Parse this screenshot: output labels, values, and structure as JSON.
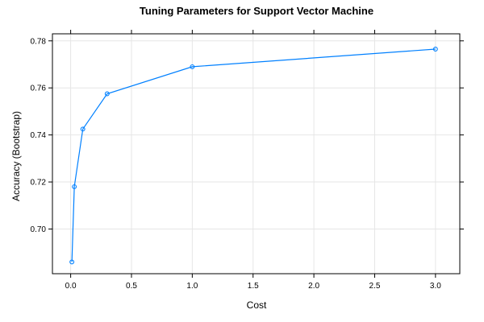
{
  "chart_data": {
    "type": "line",
    "title": "Tuning Parameters for Support Vector Machine",
    "xlabel": "Cost",
    "ylabel": "Accuracy (Bootstrap)",
    "xlim": [
      -0.15,
      3.2
    ],
    "ylim": [
      0.681,
      0.783
    ],
    "xticks": [
      0.0,
      0.5,
      1.0,
      1.5,
      2.0,
      2.5,
      3.0
    ],
    "xtick_labels": [
      "0.0",
      "0.5",
      "1.0",
      "1.5",
      "2.0",
      "2.5",
      "3.0"
    ],
    "yticks": [
      0.7,
      0.72,
      0.74,
      0.76,
      0.78
    ],
    "ytick_labels": [
      "0.70",
      "0.72",
      "0.74",
      "0.76",
      "0.78"
    ],
    "grid": true,
    "series": [
      {
        "color": "#0080ff",
        "x": [
          0.01,
          0.03,
          0.1,
          0.3,
          1.0,
          3.0
        ],
        "y": [
          0.686,
          0.718,
          0.7425,
          0.7575,
          0.769,
          0.7765
        ]
      }
    ]
  }
}
